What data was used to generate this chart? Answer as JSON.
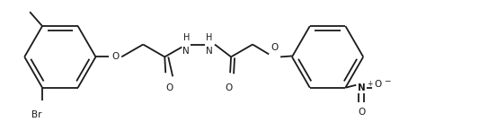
{
  "bg_color": "#ffffff",
  "line_color": "#1a1a1a",
  "line_width": 1.3,
  "font_size": 7.5,
  "figsize": [
    5.33,
    1.36
  ],
  "dpi": 100,
  "xlim": [
    0,
    533
  ],
  "ylim": [
    0,
    136
  ]
}
